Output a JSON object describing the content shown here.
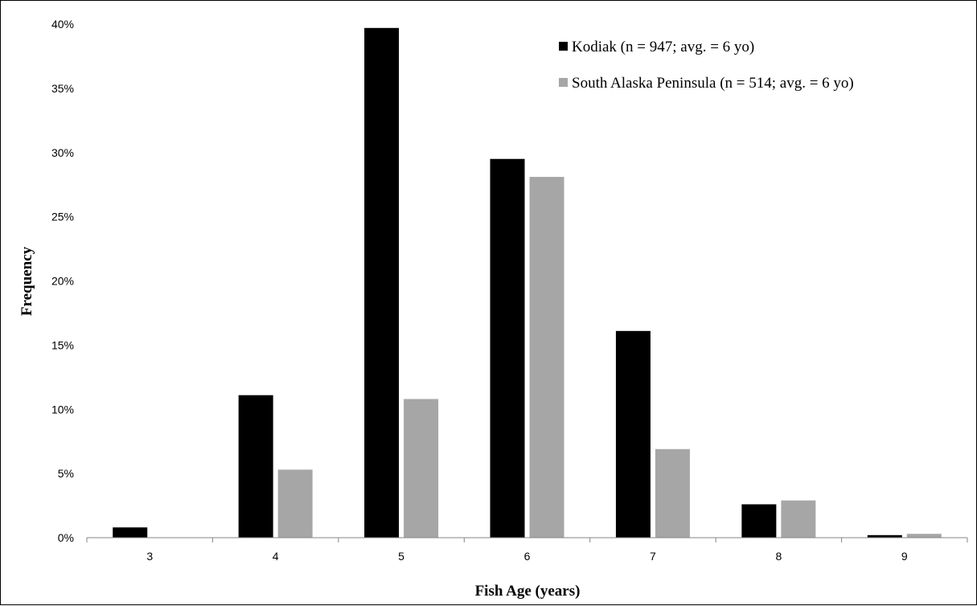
{
  "chart_data": {
    "type": "bar",
    "title": "",
    "xlabel": "Fish Age (years)",
    "ylabel": "Frequency",
    "categories": [
      "3",
      "4",
      "5",
      "6",
      "7",
      "8",
      "9"
    ],
    "ylim": [
      0,
      0.4
    ],
    "yticks": [
      0,
      0.05,
      0.1,
      0.15,
      0.2,
      0.25,
      0.3,
      0.35,
      0.4
    ],
    "ytick_labels": [
      "0%",
      "5%",
      "10%",
      "15%",
      "20%",
      "25%",
      "30%",
      "35%",
      "40%"
    ],
    "grid": false,
    "legend_position": "top-right",
    "series": [
      {
        "name": "Kodiak (n = 947; avg. = 6 yo)",
        "color": "#000000",
        "values": [
          0.008,
          0.111,
          0.397,
          0.295,
          0.161,
          0.026,
          0.002
        ]
      },
      {
        "name": "South Alaska Peninsula (n = 514; avg. = 6 yo)",
        "color": "#a6a6a6",
        "values": [
          0.0,
          0.053,
          0.108,
          0.281,
          0.069,
          0.029,
          0.003
        ]
      }
    ]
  }
}
